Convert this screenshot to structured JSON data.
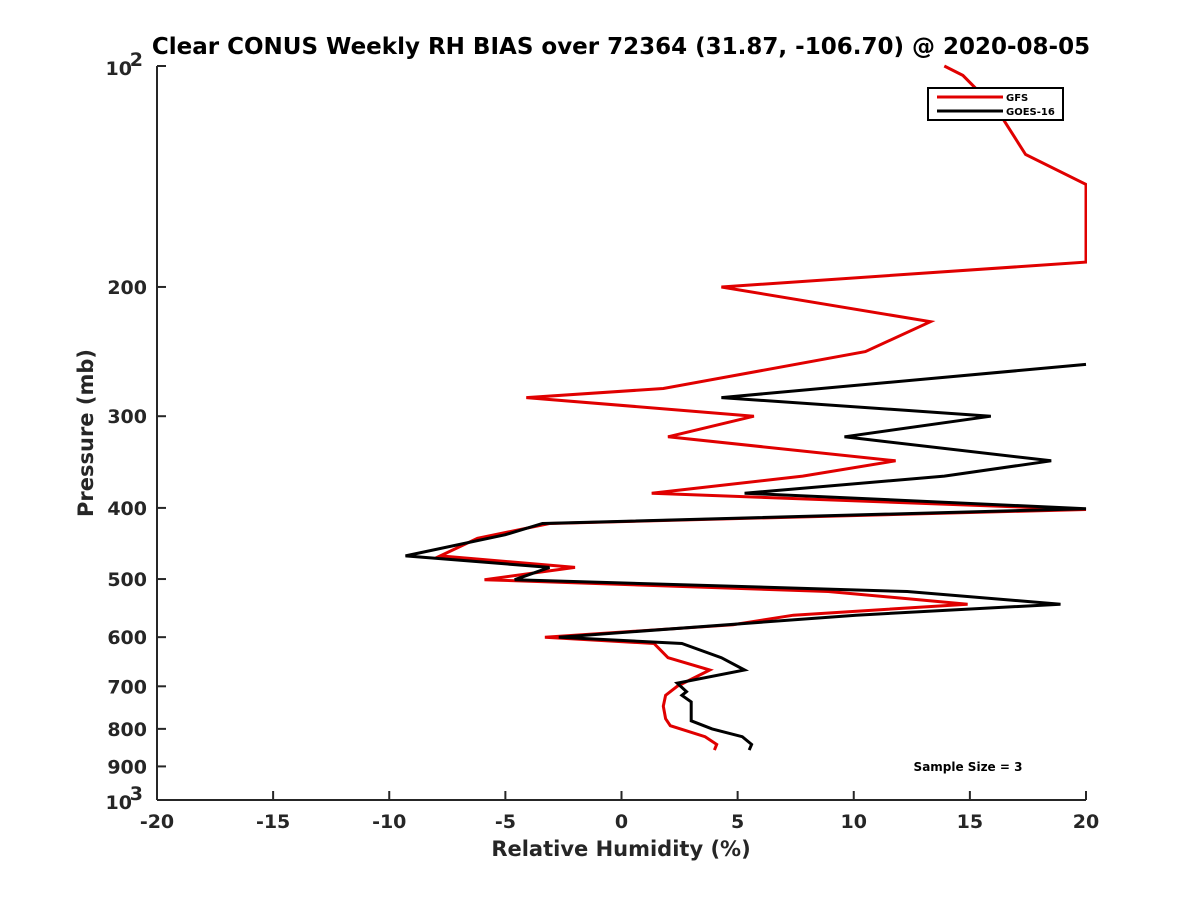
{
  "chart_data": {
    "type": "line",
    "title": "Clear CONUS Weekly RH BIAS over 72364 (31.87, -106.70) @ 2020-08-05",
    "xlabel": "Relative Humidity (%)",
    "ylabel": "Pressure (mb)",
    "xlim": [
      -20,
      20
    ],
    "ylim": [
      100,
      1000
    ],
    "y_scale": "log",
    "y_reversed": true,
    "grid": false,
    "legend_position": "top-right",
    "x_ticks": [
      -20,
      -15,
      -10,
      -5,
      0,
      5,
      10,
      15,
      20
    ],
    "x_tick_labels": [
      "-20",
      "-15",
      "-10",
      "-5",
      "0",
      "5",
      "10",
      "15",
      "20"
    ],
    "y_ticks": [
      {
        "value": 100,
        "base": "10",
        "exp": "2"
      },
      {
        "value": 200,
        "label": "200"
      },
      {
        "value": 300,
        "label": "300"
      },
      {
        "value": 400,
        "label": "400"
      },
      {
        "value": 500,
        "label": "500"
      },
      {
        "value": 600,
        "label": "600"
      },
      {
        "value": 700,
        "label": "700"
      },
      {
        "value": 800,
        "label": "800"
      },
      {
        "value": 900,
        "label": "900"
      },
      {
        "value": 1000,
        "base": "10",
        "exp": "3"
      }
    ],
    "annotation": "Sample Size = 3",
    "series": [
      {
        "name": "GFS",
        "color": "#e00000",
        "points": [
          {
            "x": 13.9,
            "y": 100
          },
          {
            "x": 14.7,
            "y": 103
          },
          {
            "x": 16.2,
            "y": 115
          },
          {
            "x": 17.4,
            "y": 132
          },
          {
            "x": 20.0,
            "y": 145
          },
          {
            "x": 20.0,
            "y": 185
          },
          {
            "x": 4.3,
            "y": 200
          },
          {
            "x": 13.3,
            "y": 223
          },
          {
            "x": 10.5,
            "y": 245
          },
          {
            "x": 1.8,
            "y": 275
          },
          {
            "x": -4.1,
            "y": 283
          },
          {
            "x": 5.7,
            "y": 300
          },
          {
            "x": 2.0,
            "y": 320
          },
          {
            "x": 11.8,
            "y": 345
          },
          {
            "x": 7.8,
            "y": 362
          },
          {
            "x": 1.3,
            "y": 382
          },
          {
            "x": 20.0,
            "y": 402
          },
          {
            "x": -3.1,
            "y": 420
          },
          {
            "x": -6.2,
            "y": 440
          },
          {
            "x": -7.8,
            "y": 465
          },
          {
            "x": -2.0,
            "y": 482
          },
          {
            "x": -5.9,
            "y": 501
          },
          {
            "x": 8.9,
            "y": 520
          },
          {
            "x": 14.9,
            "y": 541
          },
          {
            "x": 7.4,
            "y": 560
          },
          {
            "x": 4.8,
            "y": 577
          },
          {
            "x": -3.3,
            "y": 600
          },
          {
            "x": 1.4,
            "y": 612
          },
          {
            "x": 2.0,
            "y": 640
          },
          {
            "x": 3.8,
            "y": 665
          },
          {
            "x": 2.4,
            "y": 700
          },
          {
            "x": 1.9,
            "y": 720
          },
          {
            "x": 1.8,
            "y": 745
          },
          {
            "x": 1.9,
            "y": 775
          },
          {
            "x": 2.1,
            "y": 792
          },
          {
            "x": 3.6,
            "y": 820
          },
          {
            "x": 4.1,
            "y": 840
          },
          {
            "x": 4.0,
            "y": 855
          }
        ]
      },
      {
        "name": "GOES-16",
        "color": "#000000",
        "points": [
          {
            "x": 20.0,
            "y": 255
          },
          {
            "x": 4.3,
            "y": 283
          },
          {
            "x": 15.9,
            "y": 300
          },
          {
            "x": 9.6,
            "y": 320
          },
          {
            "x": 18.5,
            "y": 345
          },
          {
            "x": 13.9,
            "y": 362
          },
          {
            "x": 5.3,
            "y": 382
          },
          {
            "x": 20.0,
            "y": 401
          },
          {
            "x": -3.4,
            "y": 420
          },
          {
            "x": -5.0,
            "y": 435
          },
          {
            "x": -9.3,
            "y": 465
          },
          {
            "x": -3.1,
            "y": 482
          },
          {
            "x": -4.6,
            "y": 501
          },
          {
            "x": 12.3,
            "y": 520
          },
          {
            "x": 18.9,
            "y": 541
          },
          {
            "x": 10.1,
            "y": 560
          },
          {
            "x": -2.7,
            "y": 600
          },
          {
            "x": 2.6,
            "y": 612
          },
          {
            "x": 4.3,
            "y": 640
          },
          {
            "x": 5.3,
            "y": 665
          },
          {
            "x": 2.4,
            "y": 693
          },
          {
            "x": 2.8,
            "y": 712
          },
          {
            "x": 2.6,
            "y": 720
          },
          {
            "x": 3.0,
            "y": 735
          },
          {
            "x": 3.0,
            "y": 780
          },
          {
            "x": 3.9,
            "y": 800
          },
          {
            "x": 5.2,
            "y": 820
          },
          {
            "x": 5.6,
            "y": 840
          },
          {
            "x": 5.5,
            "y": 855
          }
        ]
      }
    ]
  }
}
